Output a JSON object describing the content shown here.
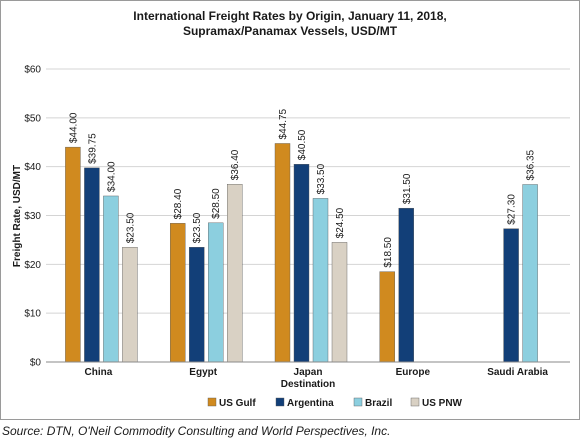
{
  "chart_data": {
    "type": "bar",
    "title": "International Freight Rates by Origin, January 11, 2018,",
    "subtitle": "Supramax/Panamax Vessels, USD/MT",
    "xlabel": "Destination",
    "ylabel": "Freight Rate, USD/MT",
    "ylim": [
      0,
      60
    ],
    "yticks": [
      0,
      10,
      20,
      30,
      40,
      50,
      60
    ],
    "ytick_labels": [
      "$0",
      "$10",
      "$20",
      "$30",
      "$40",
      "$50",
      "$60"
    ],
    "grid": true,
    "legend_position": "bottom",
    "categories": [
      "China",
      "Egypt",
      "Japan",
      "Europe",
      "Saudi Arabia"
    ],
    "series": [
      {
        "name": "US Gulf",
        "color": "#D08A1F",
        "values": [
          44.0,
          28.4,
          44.75,
          18.5,
          null
        ],
        "labels": [
          "$44.00",
          "$28.40",
          "$44.75",
          "$18.50",
          ""
        ]
      },
      {
        "name": "Argentina",
        "color": "#123F78",
        "values": [
          39.75,
          23.5,
          40.5,
          31.5,
          27.3
        ],
        "labels": [
          "$39.75",
          "$23.50",
          "$40.50",
          "$31.50",
          "$27.30"
        ]
      },
      {
        "name": "Brazil",
        "color": "#8CCFDF",
        "values": [
          34.0,
          28.5,
          33.5,
          null,
          36.35
        ],
        "labels": [
          "$34.00",
          "$28.50",
          "$33.50",
          "",
          "$36.35"
        ]
      },
      {
        "name": "US PNW",
        "color": "#D9D1C4",
        "values": [
          23.5,
          36.4,
          24.5,
          null,
          null
        ],
        "labels": [
          "$23.50",
          "$36.40",
          "$24.50",
          "",
          ""
        ]
      }
    ]
  },
  "source_note": "Source: DTN, O'Neil Commodity Consulting and World Perspectives, Inc."
}
